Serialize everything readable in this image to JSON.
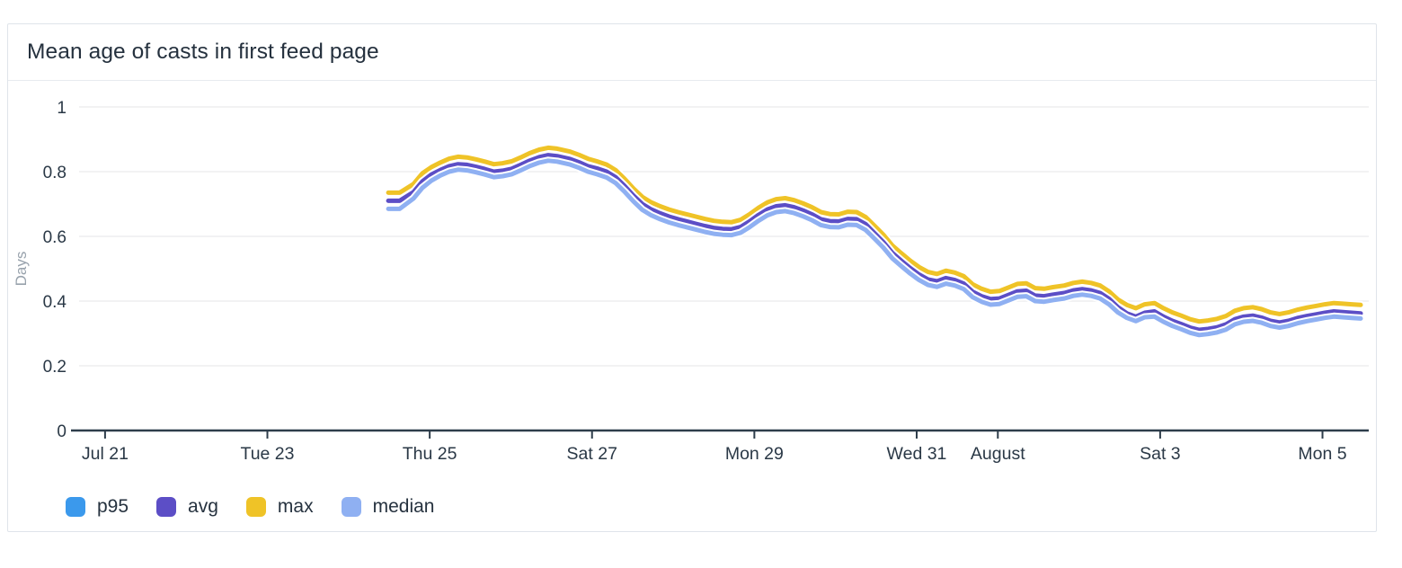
{
  "panel": {
    "title": "Mean age of casts in first feed page"
  },
  "legend": {
    "items": [
      {
        "label": "p95",
        "color": "#3b99ec"
      },
      {
        "label": "avg",
        "color": "#5c4ec6"
      },
      {
        "label": "max",
        "color": "#efc327"
      },
      {
        "label": "median",
        "color": "#8fb0f2"
      }
    ]
  },
  "style_colors": {
    "axis_line": "#2e3d4b",
    "tick_label": "#2a3846",
    "gridline": "#ededef",
    "axis_title": "#98a2ac",
    "line_halo": "#ffffff"
  },
  "chart_data": {
    "type": "line",
    "title": "Mean age of casts in first feed page",
    "xlabel": "",
    "ylabel": "Days",
    "ylim": [
      0,
      1
    ],
    "y_ticks": [
      {
        "label": "0",
        "value": 0
      },
      {
        "label": "0.2",
        "value": 0.2
      },
      {
        "label": "0.4",
        "value": 0.4
      },
      {
        "label": "0.6",
        "value": 0.6
      },
      {
        "label": "0.8",
        "value": 0.8
      },
      {
        "label": "1",
        "value": 1
      }
    ],
    "x_axis": {
      "unit": "days-since-Jul-21",
      "xlim": [
        -0.32,
        15.57
      ],
      "ticks": [
        {
          "label": "Jul 21",
          "t": 0
        },
        {
          "label": "Tue 23",
          "t": 2
        },
        {
          "label": "Thu 25",
          "t": 4
        },
        {
          "label": "Sat 27",
          "t": 6
        },
        {
          "label": "Mon 29",
          "t": 8
        },
        {
          "label": "Wed 31",
          "t": 10
        },
        {
          "label": "August",
          "t": 11
        },
        {
          "label": "Sat 3",
          "t": 13
        },
        {
          "label": "Mon 5",
          "t": 15
        }
      ]
    },
    "grid": true,
    "legend_position": "bottom",
    "x": [
      3.49,
      3.63,
      3.8,
      3.91,
      4.02,
      4.13,
      4.24,
      4.35,
      4.46,
      4.57,
      4.68,
      4.79,
      4.9,
      5.01,
      5.12,
      5.23,
      5.35,
      5.46,
      5.57,
      5.73,
      5.84,
      5.95,
      6.06,
      6.18,
      6.29,
      6.4,
      6.51,
      6.62,
      6.73,
      6.84,
      6.95,
      7.06,
      7.17,
      7.28,
      7.39,
      7.5,
      7.61,
      7.72,
      7.83,
      7.94,
      8.05,
      8.16,
      8.27,
      8.38,
      8.49,
      8.6,
      8.71,
      8.82,
      8.93,
      9.04,
      9.15,
      9.26,
      9.37,
      9.48,
      9.59,
      9.7,
      9.81,
      9.92,
      10.03,
      10.14,
      10.25,
      10.36,
      10.47,
      10.58,
      10.69,
      10.8,
      10.91,
      11.02,
      11.13,
      11.24,
      11.35,
      11.46,
      11.57,
      11.68,
      11.82,
      11.93,
      12.04,
      12.15,
      12.26,
      12.37,
      12.48,
      12.59,
      12.7,
      12.81,
      12.93,
      13.04,
      13.15,
      13.26,
      13.37,
      13.48,
      13.59,
      13.7,
      13.81,
      13.92,
      14.03,
      14.14,
      14.25,
      14.36,
      14.47,
      14.58,
      14.7,
      14.81,
      14.92,
      15.03,
      15.14,
      15.25,
      15.36,
      15.47
    ],
    "series": [
      {
        "name": "max",
        "color": "#efc327",
        "values": [
          0.735,
          0.735,
          0.762,
          0.795,
          0.814,
          0.828,
          0.84,
          0.846,
          0.844,
          0.838,
          0.831,
          0.823,
          0.826,
          0.832,
          0.844,
          0.857,
          0.868,
          0.874,
          0.871,
          0.862,
          0.852,
          0.84,
          0.832,
          0.822,
          0.805,
          0.778,
          0.748,
          0.722,
          0.705,
          0.693,
          0.683,
          0.675,
          0.668,
          0.661,
          0.654,
          0.648,
          0.645,
          0.644,
          0.651,
          0.668,
          0.688,
          0.705,
          0.715,
          0.718,
          0.712,
          0.702,
          0.69,
          0.675,
          0.669,
          0.668,
          0.676,
          0.675,
          0.66,
          0.633,
          0.605,
          0.572,
          0.548,
          0.525,
          0.505,
          0.49,
          0.484,
          0.494,
          0.488,
          0.477,
          0.452,
          0.438,
          0.429,
          0.431,
          0.442,
          0.453,
          0.455,
          0.44,
          0.438,
          0.443,
          0.448,
          0.456,
          0.46,
          0.456,
          0.448,
          0.43,
          0.405,
          0.388,
          0.378,
          0.39,
          0.394,
          0.378,
          0.365,
          0.355,
          0.344,
          0.337,
          0.34,
          0.345,
          0.354,
          0.37,
          0.378,
          0.381,
          0.375,
          0.365,
          0.36,
          0.365,
          0.374,
          0.38,
          0.385,
          0.39,
          0.394,
          0.392,
          0.39,
          0.388
        ]
      },
      {
        "name": "avg",
        "color": "#5c4ec6",
        "values": [
          0.71,
          0.71,
          0.737,
          0.77,
          0.791,
          0.805,
          0.817,
          0.823,
          0.821,
          0.815,
          0.808,
          0.8,
          0.803,
          0.809,
          0.821,
          0.834,
          0.845,
          0.851,
          0.848,
          0.839,
          0.829,
          0.817,
          0.81,
          0.8,
          0.783,
          0.756,
          0.726,
          0.7,
          0.683,
          0.671,
          0.661,
          0.653,
          0.646,
          0.639,
          0.632,
          0.626,
          0.623,
          0.622,
          0.629,
          0.646,
          0.666,
          0.683,
          0.693,
          0.696,
          0.69,
          0.68,
          0.668,
          0.653,
          0.647,
          0.646,
          0.654,
          0.653,
          0.638,
          0.61,
          0.582,
          0.549,
          0.525,
          0.502,
          0.482,
          0.467,
          0.461,
          0.471,
          0.465,
          0.454,
          0.429,
          0.415,
          0.406,
          0.408,
          0.419,
          0.43,
          0.432,
          0.417,
          0.415,
          0.42,
          0.425,
          0.433,
          0.437,
          0.433,
          0.425,
          0.407,
          0.381,
          0.362,
          0.352,
          0.364,
          0.368,
          0.352,
          0.339,
          0.329,
          0.318,
          0.311,
          0.314,
          0.319,
          0.328,
          0.344,
          0.352,
          0.355,
          0.349,
          0.339,
          0.334,
          0.339,
          0.348,
          0.354,
          0.359,
          0.364,
          0.368,
          0.366,
          0.364,
          0.362
        ]
      },
      {
        "name": "median",
        "color": "#8fb0f2",
        "values": [
          0.685,
          0.685,
          0.717,
          0.75,
          0.772,
          0.788,
          0.8,
          0.806,
          0.804,
          0.798,
          0.791,
          0.783,
          0.786,
          0.792,
          0.804,
          0.817,
          0.828,
          0.834,
          0.831,
          0.822,
          0.812,
          0.8,
          0.792,
          0.782,
          0.765,
          0.738,
          0.708,
          0.682,
          0.665,
          0.653,
          0.643,
          0.635,
          0.628,
          0.621,
          0.614,
          0.608,
          0.605,
          0.604,
          0.611,
          0.628,
          0.648,
          0.665,
          0.675,
          0.678,
          0.672,
          0.662,
          0.65,
          0.635,
          0.629,
          0.628,
          0.636,
          0.635,
          0.62,
          0.593,
          0.565,
          0.532,
          0.508,
          0.485,
          0.465,
          0.45,
          0.444,
          0.454,
          0.448,
          0.437,
          0.412,
          0.398,
          0.389,
          0.391,
          0.402,
          0.413,
          0.415,
          0.4,
          0.398,
          0.403,
          0.408,
          0.416,
          0.42,
          0.416,
          0.408,
          0.39,
          0.365,
          0.348,
          0.338,
          0.35,
          0.352,
          0.336,
          0.323,
          0.313,
          0.302,
          0.295,
          0.298,
          0.303,
          0.312,
          0.328,
          0.336,
          0.339,
          0.333,
          0.323,
          0.318,
          0.323,
          0.332,
          0.338,
          0.343,
          0.348,
          0.352,
          0.35,
          0.348,
          0.346
        ]
      },
      {
        "name": "p95",
        "color": "#3b99ec",
        "values": []
      }
    ]
  }
}
